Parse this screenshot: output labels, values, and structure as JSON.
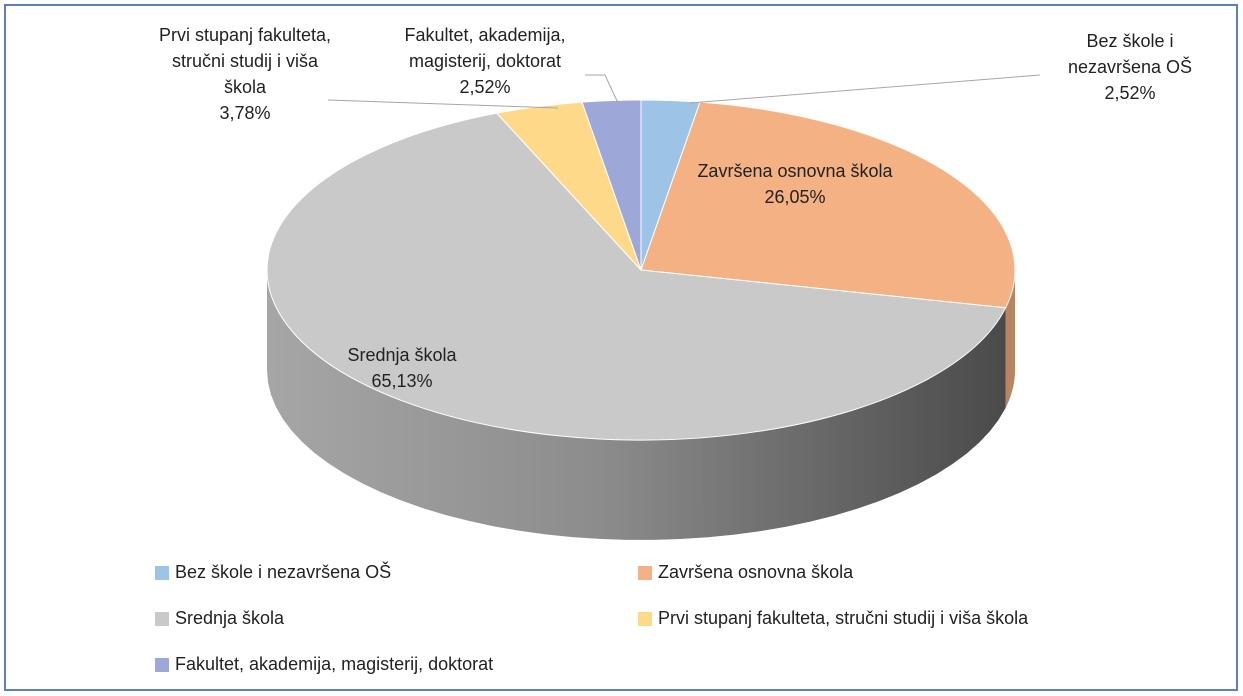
{
  "chart_data": {
    "type": "pie",
    "categories": [
      "Bez škole i nezavršena OŠ",
      "Završena osnovna škola",
      "Srednja škola",
      "Prvi stupanj fakulteta, stručni studij i viša škola",
      "Fakultet, akademija, magisterij, doktorat"
    ],
    "values": [
      2.52,
      26.05,
      65.13,
      3.78,
      2.52
    ],
    "value_labels": [
      "2,52%",
      "26,05%",
      "65,13%",
      "3,78%",
      "2,52%"
    ],
    "colors": [
      "#9dc3e6",
      "#f4b183",
      "#c9c9c9",
      "#ffd98a",
      "#9ea8d8"
    ],
    "legend": "bottom"
  }
}
